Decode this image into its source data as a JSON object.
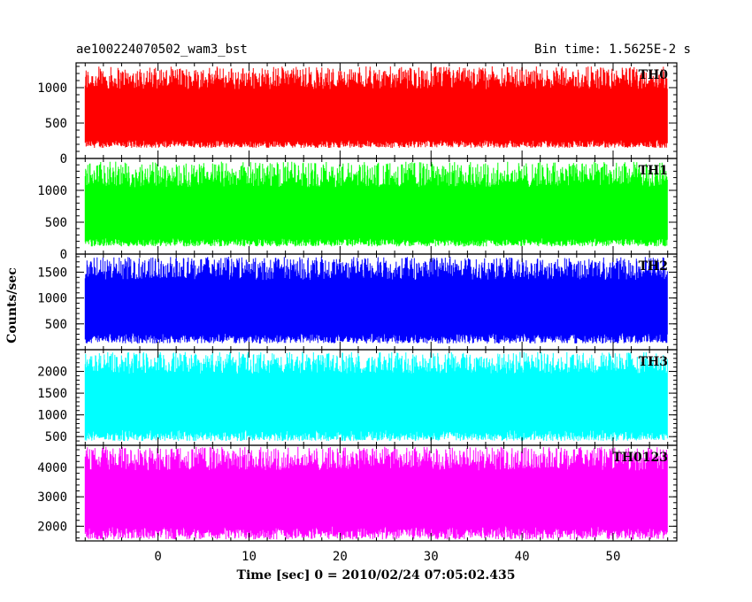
{
  "chart_data": {
    "type": "line",
    "title": "ae100224070502_wam3_bst",
    "subtitle": "Bin time: 1.5625E-2 s",
    "xlabel": "Time [sec] 0 = 2010/02/24 07:05:02.435",
    "ylabel": "Counts/sec",
    "xlim": [
      -9,
      57
    ],
    "x_range_data": [
      -8,
      56
    ],
    "x_ticks": [
      0,
      10,
      20,
      30,
      40,
      50
    ],
    "x_tick_labels": [
      "0",
      "10",
      "20",
      "30",
      "40",
      "50"
    ],
    "grid": false,
    "panels": [
      {
        "name": "TH0",
        "color": "#ff0000",
        "ylim": [
          0,
          1350
        ],
        "y_ticks": [
          0,
          500,
          1000
        ],
        "y_tick_labels": [
          "0",
          "500",
          "1000"
        ],
        "y_mean": 620,
        "y_lower_envelope": [
          150,
          260
        ],
        "y_upper_envelope": [
          980,
          1300
        ]
      },
      {
        "name": "TH1",
        "color": "#00ff00",
        "ylim": [
          0,
          1500
        ],
        "y_ticks": [
          0,
          500,
          1000
        ],
        "y_tick_labels": [
          "0",
          "500",
          "1000"
        ],
        "y_mean": 650,
        "y_lower_envelope": [
          120,
          250
        ],
        "y_upper_envelope": [
          1050,
          1450
        ]
      },
      {
        "name": "TH2",
        "color": "#0000ff",
        "ylim": [
          0,
          1850
        ],
        "y_ticks": [
          500,
          1000,
          1500
        ],
        "y_tick_labels": [
          "500",
          "1000",
          "1500"
        ],
        "y_mean": 850,
        "y_lower_envelope": [
          120,
          320
        ],
        "y_upper_envelope": [
          1350,
          1800
        ]
      },
      {
        "name": "TH3",
        "color": "#00ffff",
        "ylim": [
          300,
          2500
        ],
        "y_ticks": [
          500,
          1000,
          1500,
          2000
        ],
        "y_tick_labels": [
          "500",
          "1000",
          "1500",
          "2000"
        ],
        "y_mean": 1350,
        "y_lower_envelope": [
          400,
          650
        ],
        "y_upper_envelope": [
          1950,
          2450
        ]
      },
      {
        "name": "TH0123",
        "color": "#ff00ff",
        "ylim": [
          1500,
          4750
        ],
        "y_ticks": [
          2000,
          3000,
          4000
        ],
        "y_tick_labels": [
          "2000",
          "3000",
          "4000"
        ],
        "y_mean": 3000,
        "y_lower_envelope": [
          1550,
          2000
        ],
        "y_upper_envelope": [
          3900,
          4700
        ]
      }
    ]
  }
}
